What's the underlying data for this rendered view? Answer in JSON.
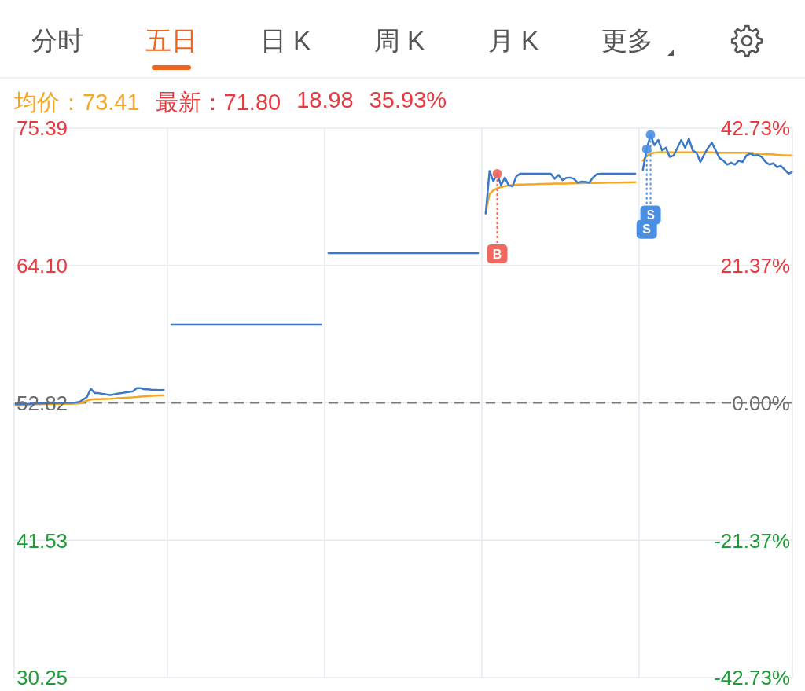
{
  "chart_data": {
    "type": "line",
    "categories": [
      null,
      null,
      null,
      null,
      null,
      null,
      null,
      null,
      null,
      null,
      null,
      null,
      null,
      null,
      null,
      null,
      null,
      null,
      null,
      null,
      null,
      null,
      null,
      null,
      null,
      null,
      null,
      null,
      null,
      null,
      null,
      null,
      null,
      null,
      null,
      null,
      null,
      null,
      null,
      null,
      null,
      null,
      null,
      null,
      null,
      null,
      null,
      null,
      null,
      null,
      null,
      null,
      null,
      null,
      null,
      null,
      null,
      null,
      null,
      null,
      null,
      null,
      null,
      null,
      null,
      null,
      null,
      null,
      null,
      null,
      null,
      null,
      null,
      null,
      null,
      null,
      null,
      null,
      null,
      null,
      null,
      null,
      null,
      null,
      null,
      null,
      null,
      null,
      null,
      null,
      null,
      null,
      null,
      null,
      null,
      null,
      null,
      null,
      null,
      null,
      null,
      null,
      null,
      null,
      null,
      null,
      null,
      null,
      null,
      null,
      null,
      null,
      null,
      null,
      null,
      null,
      null,
      null,
      null,
      null,
      null,
      null,
      null,
      null,
      null,
      null,
      null,
      null,
      null,
      null,
      null,
      null,
      null,
      null,
      null,
      null,
      null,
      null,
      null,
      null,
      null,
      null,
      null,
      null,
      null,
      null,
      null,
      null,
      null,
      null,
      null,
      null,
      null,
      null,
      null,
      null,
      null,
      null,
      null,
      null,
      null,
      null,
      null,
      null,
      null,
      null,
      null,
      null,
      null,
      null,
      null,
      null,
      null,
      null,
      null,
      null,
      null,
      null,
      null,
      null,
      null,
      null,
      null,
      null,
      null,
      null,
      null,
      null,
      null,
      null,
      null,
      null,
      null,
      null,
      null,
      null,
      null,
      null,
      null,
      null,
      null,
      null,
      null,
      null
    ],
    "series": [
      {
        "color": "#f5a623",
        "values": [
          52.62,
          52.64,
          52.66,
          52.68,
          52.68,
          52.7,
          52.7,
          52.7,
          52.72,
          52.72,
          52.72,
          52.72,
          52.74,
          52.74,
          52.74,
          52.74,
          52.75,
          52.77,
          52.87,
          53.0,
          53.09,
          53.12,
          53.13,
          53.14,
          53.15,
          53.16,
          53.18,
          53.2,
          53.22,
          53.24,
          53.26,
          53.28,
          53.3,
          53.33,
          53.36,
          53.38,
          53.4,
          53.42,
          53.43,
          53.44,
          null,
          null,
          null,
          null,
          null,
          null,
          null,
          null,
          null,
          null,
          null,
          null,
          null,
          null,
          null,
          null,
          null,
          null,
          null,
          null,
          null,
          null,
          null,
          null,
          null,
          null,
          null,
          null,
          null,
          null,
          null,
          null,
          null,
          null,
          null,
          null,
          null,
          null,
          null,
          null,
          null,
          null,
          null,
          null,
          null,
          null,
          null,
          null,
          null,
          null,
          null,
          null,
          null,
          null,
          null,
          null,
          null,
          null,
          null,
          null,
          null,
          null,
          null,
          null,
          null,
          null,
          null,
          null,
          null,
          null,
          null,
          null,
          null,
          null,
          null,
          null,
          null,
          null,
          null,
          null,
          null,
          null,
          null,
          68.47,
          69.98,
          70.28,
          70.44,
          70.55,
          70.62,
          70.68,
          70.71,
          70.74,
          70.75,
          70.76,
          70.77,
          70.78,
          70.79,
          70.81,
          70.81,
          70.82,
          70.82,
          70.83,
          70.83,
          70.84,
          70.84,
          70.85,
          70.86,
          70.87,
          70.87,
          70.88,
          70.88,
          70.89,
          70.89,
          70.9,
          70.9,
          70.91,
          70.91,
          70.92,
          70.92,
          70.93,
          70.93,
          70.94,
          70.95,
          null,
          72.72,
          73.1,
          73.3,
          73.38,
          73.4,
          73.4,
          73.4,
          73.4,
          73.4,
          73.4,
          73.4,
          73.4,
          73.4,
          73.4,
          73.4,
          73.4,
          73.4,
          73.4,
          73.4,
          73.38,
          73.38,
          73.38,
          73.38,
          73.38,
          73.38,
          73.38,
          73.38,
          73.38,
          73.38,
          73.33,
          73.3,
          73.28,
          73.26,
          73.24,
          73.22,
          73.2,
          73.18,
          73.17,
          73.15,
          73.14
        ]
      },
      {
        "color": "#3b78c8",
        "values": [
          52.7,
          52.7,
          52.72,
          52.72,
          52.74,
          52.75,
          52.77,
          52.77,
          52.78,
          52.78,
          52.8,
          52.8,
          52.82,
          52.82,
          52.84,
          52.84,
          52.86,
          52.9,
          53.09,
          53.3,
          53.98,
          53.62,
          53.62,
          53.56,
          53.51,
          53.47,
          53.51,
          53.58,
          53.62,
          53.68,
          53.72,
          53.77,
          54.03,
          54.03,
          53.93,
          53.93,
          53.89,
          53.89,
          53.87,
          53.89,
          null,
          59.24,
          59.24,
          59.24,
          59.24,
          59.24,
          59.24,
          59.24,
          59.24,
          59.24,
          59.24,
          59.24,
          59.24,
          59.24,
          59.24,
          59.24,
          59.24,
          59.24,
          59.24,
          59.24,
          59.24,
          59.24,
          59.24,
          59.24,
          59.24,
          59.24,
          59.24,
          59.24,
          59.24,
          59.24,
          59.24,
          59.24,
          59.24,
          59.24,
          59.24,
          59.24,
          59.24,
          59.24,
          59.24,
          59.24,
          59.24,
          null,
          65.12,
          65.12,
          65.12,
          65.12,
          65.12,
          65.12,
          65.12,
          65.12,
          65.12,
          65.12,
          65.12,
          65.12,
          65.12,
          65.12,
          65.12,
          65.12,
          65.12,
          65.12,
          65.12,
          65.12,
          65.12,
          65.12,
          65.12,
          65.12,
          65.12,
          65.12,
          65.12,
          65.12,
          65.12,
          65.12,
          65.12,
          65.12,
          65.12,
          65.12,
          65.12,
          65.12,
          65.12,
          65.12,
          65.12,
          65.12,
          null,
          68.37,
          71.87,
          71.02,
          71.65,
          70.7,
          71.33,
          70.7,
          70.6,
          71.44,
          71.65,
          71.65,
          71.65,
          71.65,
          71.65,
          71.65,
          71.65,
          71.65,
          71.65,
          71.23,
          71.55,
          71.12,
          71.3,
          71.33,
          71.23,
          70.91,
          71.0,
          70.98,
          70.91,
          71.33,
          71.61,
          71.65,
          71.65,
          71.65,
          71.65,
          71.65,
          71.65,
          71.65,
          71.65,
          71.65,
          71.65,
          null,
          71.97,
          73.67,
          74.84,
          73.99,
          74.42,
          73.56,
          73.78,
          73.03,
          73.14,
          73.78,
          74.42,
          73.78,
          74.52,
          73.56,
          73.35,
          72.61,
          73.24,
          73.78,
          74.2,
          73.56,
          72.93,
          72.72,
          72.4,
          72.55,
          72.4,
          72.72,
          72.61,
          73.14,
          73.31,
          73.14,
          73.18,
          73.03,
          72.61,
          72.4,
          72.5,
          72.19,
          72.29,
          71.97,
          71.65,
          71.8
        ]
      },
      {
        "type": "scatter",
        "color": "#f0685e",
        "marker": "circle",
        "values": [
          null,
          null,
          null,
          null,
          null,
          null,
          null,
          null,
          null,
          null,
          null,
          null,
          null,
          null,
          null,
          null,
          null,
          null,
          null,
          null,
          null,
          null,
          null,
          null,
          null,
          null,
          null,
          null,
          null,
          null,
          null,
          null,
          null,
          null,
          null,
          null,
          null,
          null,
          null,
          null,
          null,
          null,
          null,
          null,
          null,
          null,
          null,
          null,
          null,
          null,
          null,
          null,
          null,
          null,
          null,
          null,
          null,
          null,
          null,
          null,
          null,
          null,
          null,
          null,
          null,
          null,
          null,
          null,
          null,
          null,
          null,
          null,
          null,
          null,
          null,
          null,
          null,
          null,
          null,
          null,
          null,
          null,
          null,
          null,
          null,
          null,
          null,
          null,
          null,
          null,
          null,
          null,
          null,
          null,
          null,
          null,
          null,
          null,
          null,
          null,
          null,
          null,
          null,
          null,
          null,
          null,
          null,
          null,
          null,
          null,
          null,
          null,
          null,
          null,
          null,
          null,
          null,
          null,
          null,
          null,
          null,
          null,
          null,
          null,
          null,
          null,
          71.65,
          null,
          null,
          null,
          null,
          null,
          null,
          null,
          null,
          null,
          null,
          null,
          null,
          null,
          null,
          null,
          null,
          null,
          null,
          null,
          null,
          null,
          null,
          null,
          null,
          null,
          null,
          null,
          null,
          null,
          null,
          null,
          null,
          null,
          null,
          null,
          null,
          null,
          null,
          null,
          null,
          null,
          null,
          null,
          null,
          null,
          null,
          null,
          null,
          null,
          null,
          null,
          null,
          null,
          null,
          null,
          null,
          null,
          null,
          null,
          null,
          null,
          null,
          null,
          null,
          null,
          null,
          null,
          null,
          null,
          null,
          null,
          null,
          null,
          null,
          null,
          null,
          null
        ]
      },
      {
        "type": "scatter",
        "color": "#4a8fe2",
        "marker": "circle",
        "values": [
          null,
          null,
          null,
          null,
          null,
          null,
          null,
          null,
          null,
          null,
          null,
          null,
          null,
          null,
          null,
          null,
          null,
          null,
          null,
          null,
          null,
          null,
          null,
          null,
          null,
          null,
          null,
          null,
          null,
          null,
          null,
          null,
          null,
          null,
          null,
          null,
          null,
          null,
          null,
          null,
          null,
          null,
          null,
          null,
          null,
          null,
          null,
          null,
          null,
          null,
          null,
          null,
          null,
          null,
          null,
          null,
          null,
          null,
          null,
          null,
          null,
          null,
          null,
          null,
          null,
          null,
          null,
          null,
          null,
          null,
          null,
          null,
          null,
          null,
          null,
          null,
          null,
          null,
          null,
          null,
          null,
          null,
          null,
          null,
          null,
          null,
          null,
          null,
          null,
          null,
          null,
          null,
          null,
          null,
          null,
          null,
          null,
          null,
          null,
          null,
          null,
          null,
          null,
          null,
          null,
          null,
          null,
          null,
          null,
          null,
          null,
          null,
          null,
          null,
          null,
          null,
          null,
          null,
          null,
          null,
          null,
          null,
          null,
          null,
          null,
          null,
          null,
          null,
          null,
          null,
          null,
          null,
          null,
          null,
          null,
          null,
          null,
          null,
          null,
          null,
          null,
          null,
          null,
          null,
          null,
          null,
          null,
          null,
          null,
          null,
          null,
          null,
          null,
          null,
          null,
          null,
          null,
          null,
          null,
          null,
          null,
          null,
          null,
          null,
          null,
          73.67,
          74.84,
          null,
          null,
          null,
          null,
          null,
          null,
          null,
          null,
          null,
          null,
          null,
          null,
          null,
          null,
          null,
          null,
          null,
          null,
          null,
          null,
          null,
          null,
          null,
          null,
          null,
          null,
          null,
          null,
          null,
          null,
          null,
          null,
          null,
          null,
          null,
          null,
          null
        ]
      }
    ],
    "ylim": [
      30.25,
      75.39
    ],
    "yticks": [
      30.25,
      41.53,
      52.82,
      {
        "value": 64.1,
        "label": "64.10"
      },
      75.39
    ],
    "y2lim": [
      -42.73,
      42.73
    ],
    "y2ticks": [
      {
        "value": -42.73,
        "label": "-42.73%"
      },
      {
        "value": -21.37,
        "label": "-21.37%"
      },
      {
        "value": 0,
        "label": "0.00%"
      },
      {
        "value": 21.37,
        "label": "21.37%"
      },
      {
        "value": 42.73,
        "label": "42.73%"
      }
    ],
    "ref_lines": [
      {
        "axis": "y",
        "value": 52.82,
        "color": "#7a7a7a",
        "line_style": "dashed"
      }
    ],
    "annotations": [
      "分时",
      "五日",
      "日 K",
      "周 K",
      "月 K",
      "更多",
      "均价：73.41",
      "最新：71.80",
      "18.98",
      "35.93%",
      {
        "text": "B",
        "y": 71.65
      },
      {
        "text": "S",
        "y": 74.84
      },
      {
        "text": "S",
        "y": 73.67
      }
    ],
    "grid": true,
    "tick_labels": "y"
  }
}
